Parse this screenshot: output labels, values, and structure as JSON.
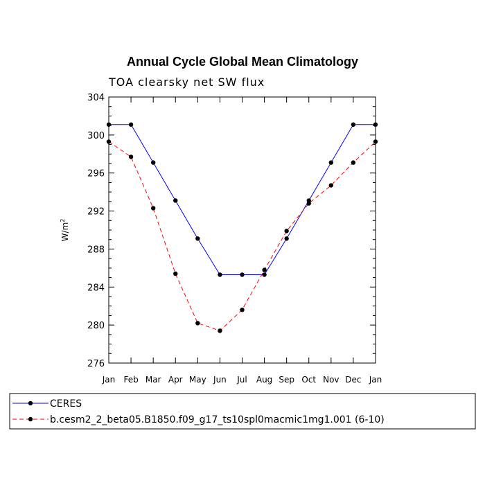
{
  "chart_data": {
    "type": "line",
    "title": "Annual Cycle Global Mean Climatology",
    "subtitle": "TOA clearsky net SW flux",
    "ylabel_base": "W/m",
    "ylabel_sup": "2",
    "ylim": [
      276,
      304
    ],
    "y_major_ticks": [
      276,
      280,
      284,
      288,
      292,
      296,
      300,
      304
    ],
    "y_minor_step": 1,
    "x": [
      "Jan",
      "Feb",
      "Mar",
      "Apr",
      "May",
      "Jun",
      "Jul",
      "Aug",
      "Sep",
      "Oct",
      "Nov",
      "Dec",
      "Jan"
    ],
    "grid": false,
    "legend_position": "bottom",
    "series": [
      {
        "name": "CERES",
        "color": "#0000ff",
        "dash": "solid",
        "values": [
          301.1,
          301.1,
          297.1,
          293.1,
          289.1,
          285.3,
          285.3,
          285.3,
          289.1,
          293.1,
          297.1,
          301.1,
          301.1
        ]
      },
      {
        "name": "b.cesm2_2_beta05.B1850.f09_g17_ts10spl0macmic1mg1.001 (6-10)",
        "color": "#ff0000",
        "dash": "dashed",
        "values": [
          299.3,
          297.7,
          292.3,
          285.4,
          280.2,
          279.4,
          281.6,
          285.8,
          289.9,
          292.8,
          294.7,
          297.1,
          299.3
        ]
      }
    ]
  }
}
